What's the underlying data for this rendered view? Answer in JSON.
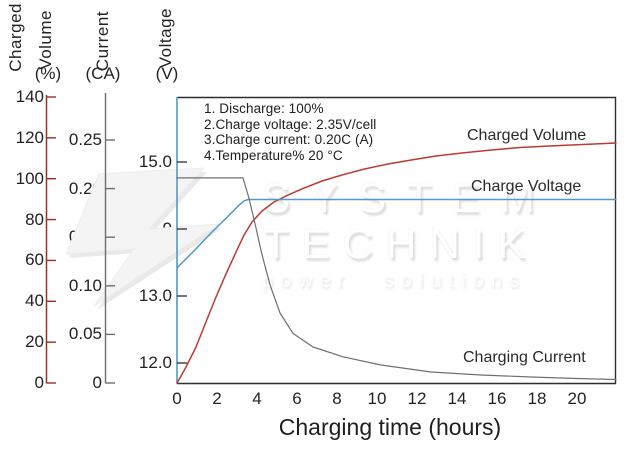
{
  "axes": {
    "volume": {
      "title_word1": "Charged",
      "title_word2": "Volume",
      "unit": "(%)",
      "tick_labels": [
        "140",
        "120",
        "100",
        "80",
        "60",
        "40",
        "20",
        "0"
      ],
      "tick_values": [
        140,
        120,
        100,
        80,
        60,
        40,
        20,
        0
      ],
      "color": "#9b2d27"
    },
    "current": {
      "title": "Current",
      "unit": "(CA)",
      "tick_labels": [
        "0.25",
        "0.20",
        "0.15",
        "0.10",
        "0.05",
        "0"
      ],
      "tick_values": [
        0.25,
        0.2,
        0.15,
        0.1,
        0.05,
        0
      ],
      "color": "#6e6e6e"
    },
    "voltage": {
      "title": "Voltage",
      "unit": "(V)",
      "tick_labels": [
        "15.0",
        "14.0",
        "13.0",
        "12.0"
      ],
      "tick_values": [
        15.0,
        14.0,
        13.0,
        12.0
      ],
      "color": "#5499c7"
    },
    "x": {
      "title": "Charging time (hours)",
      "tick_labels": [
        "0",
        "2",
        "4",
        "6",
        "8",
        "10",
        "12",
        "14",
        "16",
        "18",
        "20"
      ],
      "tick_values": [
        0,
        2,
        4,
        6,
        8,
        10,
        12,
        14,
        16,
        18,
        20
      ]
    }
  },
  "notes": [
    "1. Discharge: 100%",
    "2.Charge voltage: 2.35V/cell",
    "3.Charge current: 0.20C (A)",
    "4.Temperature% 20 °C"
  ],
  "curve_labels": {
    "charged_volume": "Charged Volume",
    "charge_voltage": "Charge Voltage",
    "charging_current": "Charging Current"
  },
  "watermark": {
    "line1": "SYSTEM",
    "line2": "TECHNIK",
    "line3": "power solutions"
  },
  "chart_data": {
    "type": "line",
    "title": "",
    "xlabel": "Charging time (hours)",
    "x_range_hours": [
      0,
      22
    ],
    "x_ticks": [
      0,
      2,
      4,
      6,
      8,
      10,
      12,
      14,
      16,
      18,
      20
    ],
    "grid": false,
    "legend_position": "inline-labels",
    "annotations": [
      "1. Discharge: 100%",
      "2.Charge voltage: 2.35V/cell",
      "3.Charge current: 0.20C (A)",
      "4.Temperature% 20 °C"
    ],
    "axes": [
      {
        "name": "Charged Volume",
        "unit": "%",
        "ticks": [
          0,
          20,
          40,
          60,
          80,
          100,
          120,
          140
        ],
        "axis_color": "#9b2d27"
      },
      {
        "name": "Current",
        "unit": "CA",
        "ticks": [
          0,
          0.05,
          0.1,
          0.15,
          0.2,
          0.25
        ],
        "axis_color": "#6e6e6e"
      },
      {
        "name": "Voltage",
        "unit": "V",
        "ticks": [
          12.0,
          13.0,
          14.0,
          15.0
        ],
        "axis_color": "#5499c7"
      }
    ],
    "series": [
      {
        "name": "Charged Volume",
        "unit": "%",
        "color": "#bc3a34",
        "points": [
          [
            0,
            0
          ],
          [
            0.45,
            7.8
          ],
          [
            0.95,
            17.6
          ],
          [
            1.45,
            29.9
          ],
          [
            1.95,
            42.1
          ],
          [
            2.45,
            53.4
          ],
          [
            2.95,
            64.1
          ],
          [
            3.35,
            72.4
          ],
          [
            3.75,
            78.8
          ],
          [
            4.25,
            84.2
          ],
          [
            4.85,
            88.6
          ],
          [
            5.55,
            92.0
          ],
          [
            6.35,
            95.4
          ],
          [
            7.25,
            98.9
          ],
          [
            8.25,
            101.8
          ],
          [
            9.35,
            104.7
          ],
          [
            10.55,
            107.2
          ],
          [
            11.75,
            109.2
          ],
          [
            12.95,
            111.1
          ],
          [
            14.25,
            112.6
          ],
          [
            15.65,
            114.0
          ],
          [
            17.15,
            115.3
          ],
          [
            18.65,
            116.0
          ],
          [
            20.15,
            116.7
          ],
          [
            21.95,
            117.5
          ]
        ]
      },
      {
        "name": "Charge Voltage",
        "unit": "V",
        "color": "#5499c7",
        "points": [
          [
            0,
            13.42
          ],
          [
            0.9,
            13.69
          ],
          [
            1.8,
            13.97
          ],
          [
            2.55,
            14.19
          ],
          [
            3.05,
            14.34
          ],
          [
            3.35,
            14.42
          ],
          [
            3.55,
            14.44
          ],
          [
            6,
            14.44
          ],
          [
            10,
            14.44
          ],
          [
            16,
            14.44
          ],
          [
            21.95,
            14.44
          ]
        ]
      },
      {
        "name": "Charging Current",
        "unit": "CA",
        "color": "#707070",
        "points": [
          [
            0,
            0.211
          ],
          [
            1,
            0.211
          ],
          [
            2,
            0.211
          ],
          [
            3,
            0.211
          ],
          [
            3.3,
            0.211
          ],
          [
            3.6,
            0.19
          ],
          [
            3.9,
            0.164
          ],
          [
            4.25,
            0.132
          ],
          [
            4.65,
            0.101
          ],
          [
            5.15,
            0.072
          ],
          [
            5.8,
            0.051
          ],
          [
            6.8,
            0.037
          ],
          [
            8.3,
            0.027
          ],
          [
            10.2,
            0.0185
          ],
          [
            12.7,
            0.0113
          ],
          [
            15.2,
            0.0082
          ],
          [
            17.7,
            0.0062
          ],
          [
            20,
            0.0046
          ],
          [
            21.95,
            0.0036
          ]
        ]
      }
    ]
  }
}
